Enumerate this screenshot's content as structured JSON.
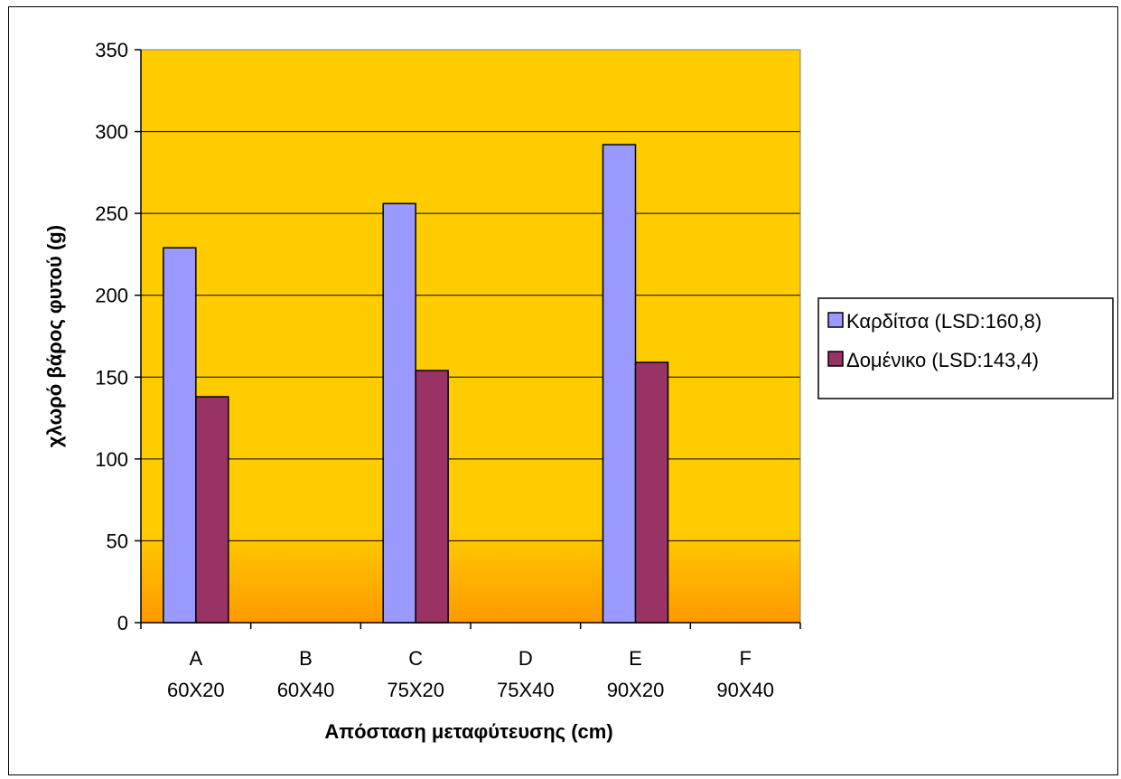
{
  "chart_data": {
    "type": "bar",
    "categories": [
      [
        "A",
        "60X20"
      ],
      [
        "B",
        "60X40"
      ],
      [
        "C",
        "75X20"
      ],
      [
        "D",
        "75X40"
      ],
      [
        "E",
        "90X20"
      ],
      [
        "F",
        "90X40"
      ]
    ],
    "series": [
      {
        "name": "Καρδίτσα (LSD:160,8)",
        "color": "#9999ff",
        "values": [
          229,
          null,
          256,
          null,
          292,
          null
        ]
      },
      {
        "name": "Δομένικο (LSD:143,4)",
        "color": "#993366",
        "values": [
          138,
          null,
          154,
          null,
          159,
          null
        ]
      }
    ],
    "xlabel": "Απόσταση μεταφύτευσης (cm)",
    "ylabel": "χλωρό βάρος φυτού (g)",
    "ylim": [
      0,
      350
    ],
    "yticks": [
      0,
      50,
      100,
      150,
      200,
      250,
      300,
      350
    ],
    "grid": true,
    "legend_position": "right",
    "plot_background": {
      "top": "#ffcc00",
      "bottom": "#ff9900"
    }
  }
}
